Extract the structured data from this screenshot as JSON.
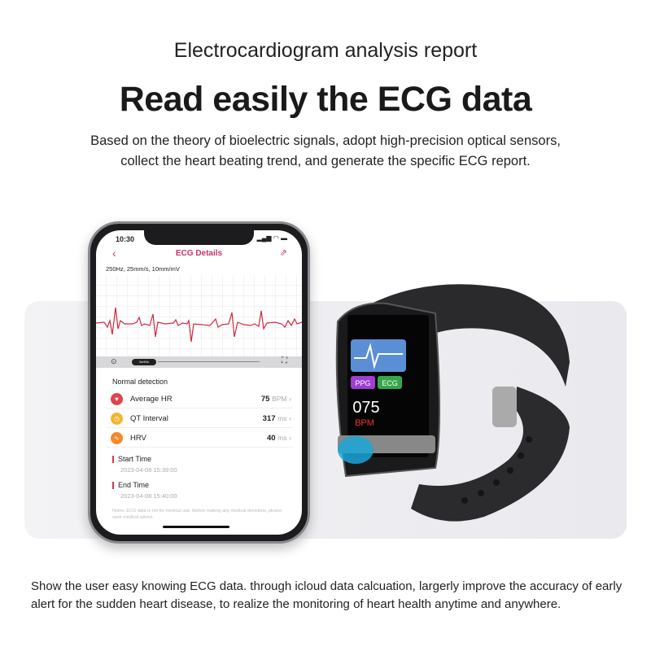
{
  "header": {
    "eyebrow": "Electrocardiogram analysis report",
    "title": "Read easily the ECG data",
    "subtitle_lines": [
      "Based on the theory of bioelectric signals, adopt high-precision optical sensors,",
      "collect the heart beating trend, and generate the specific ECG report."
    ]
  },
  "phone": {
    "time": "10:30",
    "nav_title": "ECG Details",
    "spec": "250Hz, 25mm/s, 10mm/mV",
    "player_chip": "0s/40s",
    "section": "Normal detection",
    "metrics": [
      {
        "label": "Average HR",
        "value": "75",
        "unit": "BPM",
        "icon": "heart-icon",
        "color": "#e0444f"
      },
      {
        "label": "QT Interval",
        "value": "317",
        "unit": "ms",
        "icon": "clock-icon",
        "color": "#f2b631"
      },
      {
        "label": "HRV",
        "value": "40",
        "unit": "ms",
        "icon": "pulse-icon",
        "color": "#f28a2a"
      }
    ],
    "start_label": "Start Time",
    "start_value": "2023-04-08 15:39:00",
    "end_label": "End Time",
    "end_value": "2023-04-08 15:40:00",
    "note": "Notes: ECG data is not for medical use. Before making any medical decisions, please seek medical advice.",
    "accent": "#c8336a"
  },
  "watch": {
    "btn1": "PPG",
    "btn2": "ECG",
    "reading": "075",
    "unit": "BPM"
  },
  "footer": {
    "text": "Show the user easy knowing ECG data. through icloud data calcuation, largerly improve the accuracy of early alert for the sudden heart disease, to realize the monitoring of heart health anytime and anywhere."
  }
}
